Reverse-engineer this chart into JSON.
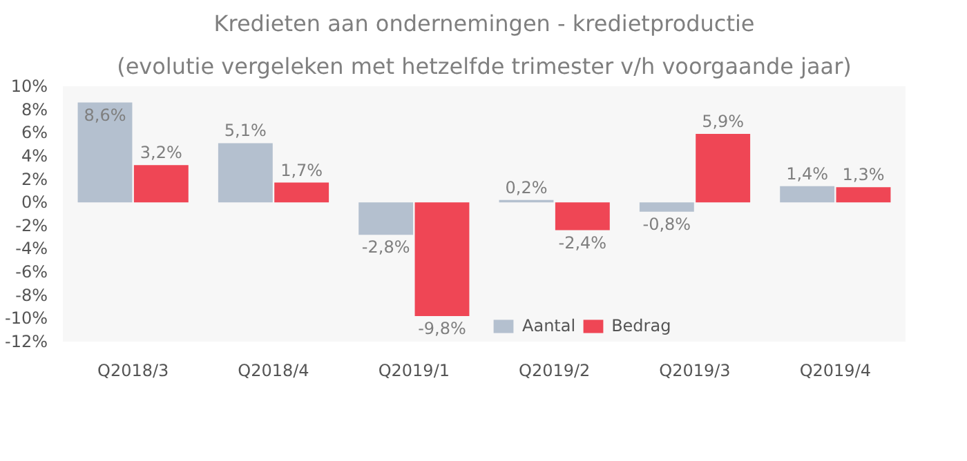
{
  "chart_data": {
    "type": "bar",
    "title": "Kredieten aan ondernemingen - kredietproductie",
    "subtitle": "(evolutie vergeleken met hetzelfde trimester v/h voorgaande jaar)",
    "categories": [
      "Q2018/3",
      "Q2018/4",
      "Q2019/1",
      "Q2019/2",
      "Q2019/3",
      "Q2019/4"
    ],
    "series": [
      {
        "name": "Aantal",
        "color": "#b4c0cf",
        "values": [
          8.6,
          5.1,
          -2.8,
          0.2,
          -0.8,
          1.4
        ],
        "value_labels": [
          "8,6%",
          "5,1%",
          "-2,8%",
          "0,2%",
          "-0,8%",
          "1,4%"
        ]
      },
      {
        "name": "Bedrag",
        "color": "#ef4655",
        "values": [
          3.2,
          1.7,
          -9.8,
          -2.4,
          5.9,
          1.3
        ],
        "value_labels": [
          "3,2%",
          "1,7%",
          "-9,8%",
          "-2,4%",
          "5,9%",
          "1,3%"
        ]
      }
    ],
    "ylim": [
      -12,
      10
    ],
    "yticks": [
      {
        "value": -12,
        "label": "-12%"
      },
      {
        "value": -10,
        "label": "-10%"
      },
      {
        "value": -8,
        "label": "-8%"
      },
      {
        "value": -6,
        "label": "-6%"
      },
      {
        "value": -4,
        "label": "-4%"
      },
      {
        "value": -2,
        "label": "-2%"
      },
      {
        "value": 0,
        "label": "0%"
      },
      {
        "value": 2,
        "label": "2%"
      },
      {
        "value": 4,
        "label": "4%"
      },
      {
        "value": 6,
        "label": "6%"
      },
      {
        "value": 8,
        "label": "8%"
      },
      {
        "value": 10,
        "label": "10%"
      }
    ],
    "grid": false,
    "legend": "bottom"
  }
}
